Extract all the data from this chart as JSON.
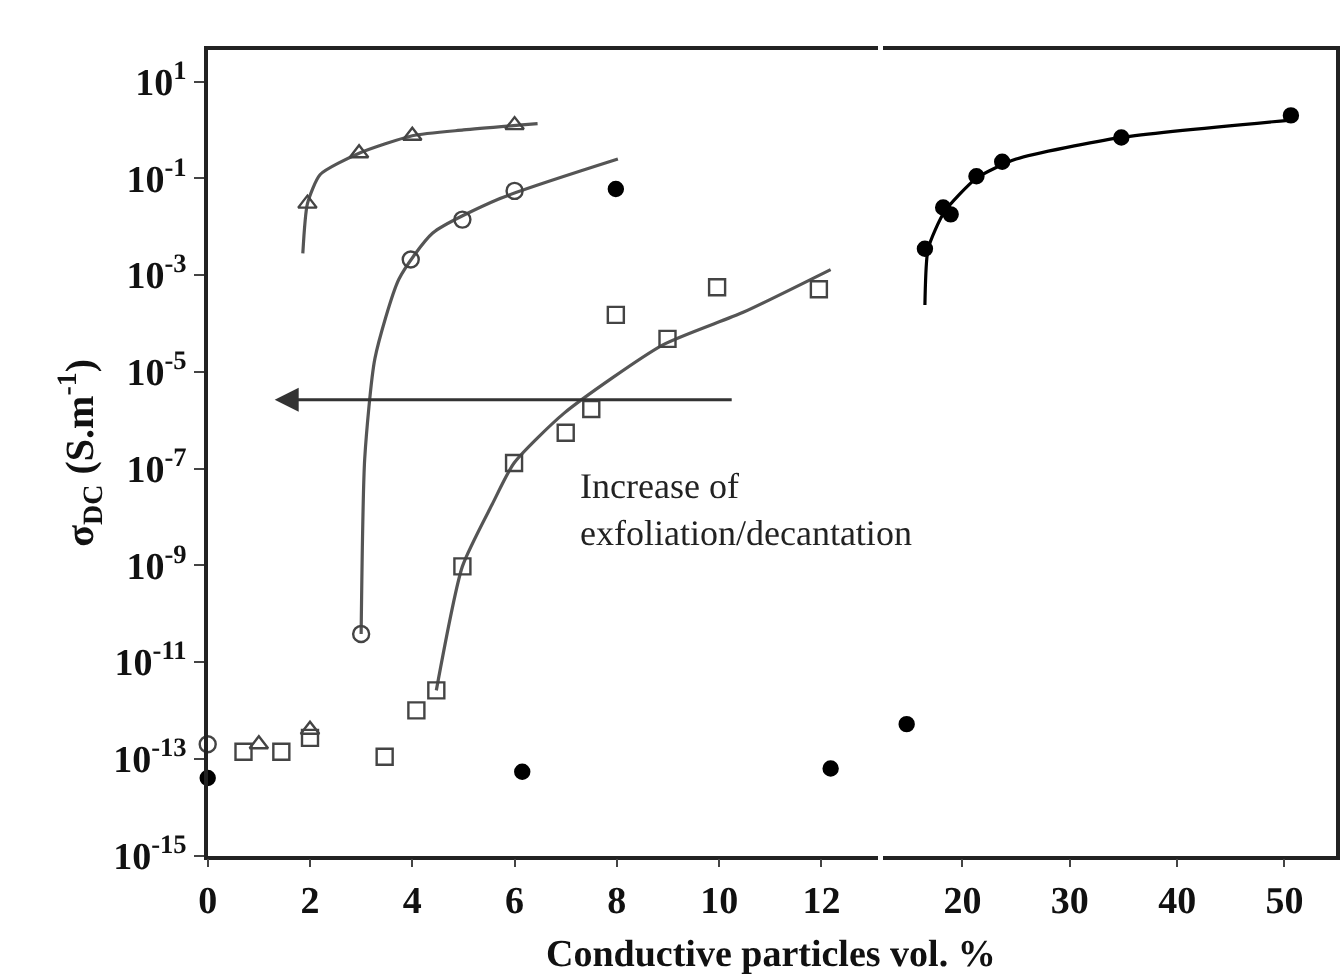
{
  "chart_data": [
    {
      "type": "scatter",
      "xlabel": "Conductive particles vol. %",
      "ylabel": "σ$_{DC}$ (S.m$^{-1}$)",
      "log": "y",
      "annotations": [
        "Increase of\nexfoliation/decantation"
      ],
      "xlim": [
        0,
        13.1
      ],
      "xticks": [
        0,
        2,
        4,
        6,
        8,
        10,
        12
      ],
      "ylim": [
        1e-15,
        45
      ],
      "yticks": [
        {
          "value": 10,
          "label": "10$^{1}$"
        },
        {
          "value": 0.1,
          "label": "10$^{-1}$"
        },
        {
          "value": 0.001,
          "label": "10$^{-3}$"
        },
        {
          "value": 1e-05,
          "label": "10$^{-5}$"
        },
        {
          "value": 1e-07,
          "label": "10$^{-7}$"
        },
        {
          "value": 1e-09,
          "label": "10$^{-9}$"
        },
        {
          "value": 1e-11,
          "label": "10$^{-11}$"
        },
        {
          "value": 1e-13,
          "label": "10$^{-13}$"
        },
        {
          "value": 1e-15,
          "label": "10$^{-15}$"
        }
      ],
      "series": [
        {
          "type": "line",
          "color": "#555555",
          "x": [
            1.86,
            1.95,
            2.2,
            2.96,
            4.0,
            5.0,
            6.45
          ],
          "values": [
            0.0028,
            0.03,
            0.12,
            0.33,
            0.76,
            1.0,
            1.35
          ]
        },
        {
          "type": "line",
          "color": "#555555",
          "x": [
            3.0,
            3.07,
            3.27,
            3.74,
            4.4,
            5.68,
            8.02
          ],
          "values": [
            3.8e-11,
            1.6e-07,
            1.9e-05,
            0.00083,
            0.0074,
            0.037,
            0.25
          ]
        },
        {
          "type": "line",
          "color": "#555555",
          "x": [
            4.47,
            4.98,
            5.56,
            5.99,
            6.97,
            8.9,
            10.47,
            12.18
          ],
          "values": [
            2.6e-12,
            9.5e-10,
            1.8e-08,
            1.3e-07,
            1.4e-06,
            3.6e-05,
            0.00017,
            0.0013
          ]
        },
        {
          "marker": "triangle",
          "color": "#444444",
          "x": [
            1.0,
            2.0,
            1.95,
            2.96,
            4.0,
            6.0
          ],
          "values": [
            2e-13,
            4e-13,
            0.03,
            0.33,
            0.76,
            1.26
          ]
        },
        {
          "marker": "circle",
          "color": "#444444",
          "x": [
            0,
            3.0,
            3.97,
            4.98,
            6.0
          ],
          "values": [
            2e-13,
            3.8e-11,
            0.0021,
            0.014,
            0.055
          ]
        },
        {
          "marker": "square",
          "color": "#444444",
          "x": [
            0.7,
            1.44,
            2.0,
            3.46,
            4.08,
            4.47,
            4.98,
            5.99,
            7.0,
            7.5,
            7.98,
            8.99,
            9.96,
            11.95
          ],
          "values": [
            1.4e-13,
            1.4e-13,
            2.7e-13,
            1.1e-13,
            1e-12,
            2.6e-12,
            9.5e-10,
            1.3e-07,
            5.5e-07,
            1.7e-06,
            0.00015,
            4.8e-05,
            0.00056,
            0.00051
          ]
        },
        {
          "marker": "circle",
          "color": "#000000",
          "x": [
            0,
            6.15,
            7.98,
            12.18
          ],
          "values": [
            4e-14,
            5.4e-14,
            0.06,
            6.3e-14
          ]
        }
      ]
    },
    {
      "type": "scatter",
      "log": "y",
      "tick_labels": "x",
      "xlim": [
        12.6,
        54.8
      ],
      "xticks": [
        20,
        30,
        40,
        50
      ],
      "ylim": [
        1e-15,
        45
      ],
      "series": [
        {
          "type": "line",
          "color": "#000000",
          "x": [
            16.5,
            16.8,
            18.3,
            21.3,
            25,
            34.8,
            50.6
          ],
          "values": [
            0.00024,
            0.0035,
            0.02,
            0.1,
            0.25,
            0.7,
            1.6
          ]
        },
        {
          "marker": "circle",
          "color": "#000000",
          "x": [
            14.8,
            16.5,
            18.2,
            18.9,
            21.3,
            23.7,
            34.8,
            50.6
          ],
          "values": [
            5.2e-13,
            0.0035,
            0.025,
            0.018,
            0.11,
            0.22,
            0.7,
            2.0
          ]
        }
      ]
    }
  ]
}
